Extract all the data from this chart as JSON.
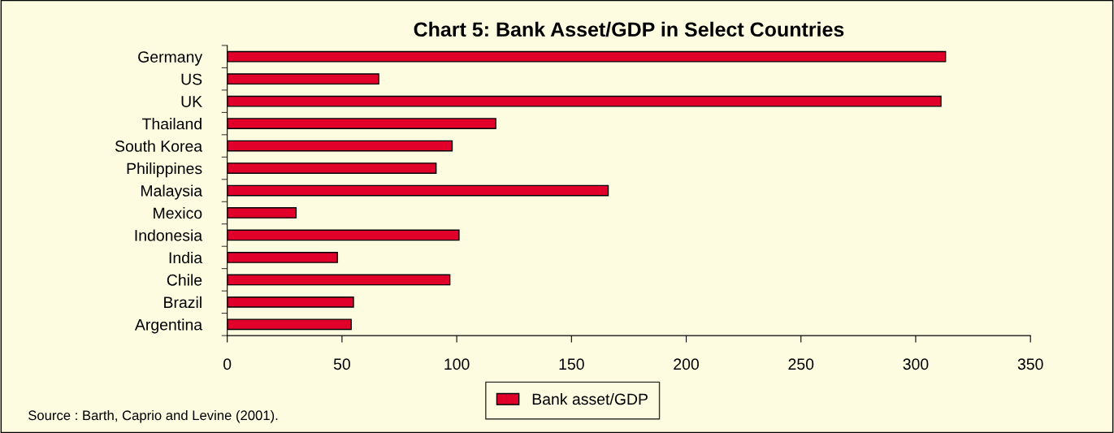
{
  "chart_data": {
    "type": "bar",
    "orientation": "horizontal",
    "title": "Chart 5: Bank Asset/GDP in Select Countries",
    "categories": [
      "Germany",
      "US",
      "UK",
      "Thailand",
      "South Korea",
      "Philippines",
      "Malaysia",
      "Mexico",
      "Indonesia",
      "India",
      "Chile",
      "Brazil",
      "Argentina"
    ],
    "series": [
      {
        "name": "Bank asset/GDP",
        "color": "#e0002a",
        "values": [
          313,
          66,
          311,
          117,
          98,
          91,
          166,
          30,
          101,
          48,
          97,
          55,
          54
        ]
      }
    ],
    "xlim": [
      0,
      350
    ],
    "xticks": [
      0,
      50,
      100,
      150,
      200,
      250,
      300,
      350
    ],
    "grid": false,
    "legend": "bottom",
    "annotations": [
      "Source : Barth, Caprio and Levine (2001)."
    ]
  }
}
